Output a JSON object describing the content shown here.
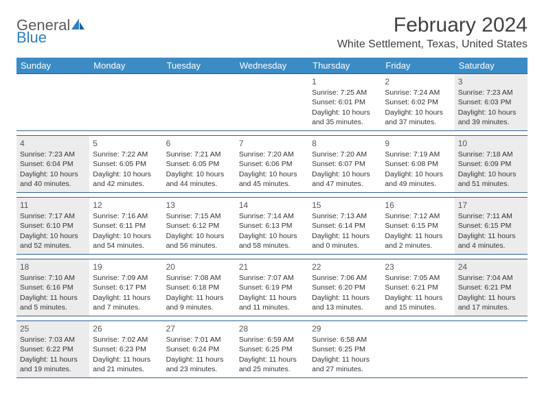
{
  "logo": {
    "text_gray": "General",
    "text_blue": "Blue"
  },
  "title": "February 2024",
  "subtitle": "White Settlement, Texas, United States",
  "colors": {
    "header_bg": "#3b8bc4",
    "border": "#2f5f8f",
    "shaded_bg": "#ececec",
    "text": "#333333",
    "title_text": "#404040",
    "logo_gray": "#5a5a5a",
    "logo_blue": "#2f7fbf"
  },
  "weekdays": [
    "Sunday",
    "Monday",
    "Tuesday",
    "Wednesday",
    "Thursday",
    "Friday",
    "Saturday"
  ],
  "weeks": [
    [
      {
        "num": "",
        "lines": []
      },
      {
        "num": "",
        "lines": []
      },
      {
        "num": "",
        "lines": []
      },
      {
        "num": "",
        "lines": []
      },
      {
        "num": "1",
        "lines": [
          "Sunrise: 7:25 AM",
          "Sunset: 6:01 PM",
          "Daylight: 10 hours and 35 minutes."
        ]
      },
      {
        "num": "2",
        "lines": [
          "Sunrise: 7:24 AM",
          "Sunset: 6:02 PM",
          "Daylight: 10 hours and 37 minutes."
        ]
      },
      {
        "num": "3",
        "lines": [
          "Sunrise: 7:23 AM",
          "Sunset: 6:03 PM",
          "Daylight: 10 hours and 39 minutes."
        ]
      }
    ],
    [
      {
        "num": "4",
        "lines": [
          "Sunrise: 7:23 AM",
          "Sunset: 6:04 PM",
          "Daylight: 10 hours and 40 minutes."
        ]
      },
      {
        "num": "5",
        "lines": [
          "Sunrise: 7:22 AM",
          "Sunset: 6:05 PM",
          "Daylight: 10 hours and 42 minutes."
        ]
      },
      {
        "num": "6",
        "lines": [
          "Sunrise: 7:21 AM",
          "Sunset: 6:05 PM",
          "Daylight: 10 hours and 44 minutes."
        ]
      },
      {
        "num": "7",
        "lines": [
          "Sunrise: 7:20 AM",
          "Sunset: 6:06 PM",
          "Daylight: 10 hours and 45 minutes."
        ]
      },
      {
        "num": "8",
        "lines": [
          "Sunrise: 7:20 AM",
          "Sunset: 6:07 PM",
          "Daylight: 10 hours and 47 minutes."
        ]
      },
      {
        "num": "9",
        "lines": [
          "Sunrise: 7:19 AM",
          "Sunset: 6:08 PM",
          "Daylight: 10 hours and 49 minutes."
        ]
      },
      {
        "num": "10",
        "lines": [
          "Sunrise: 7:18 AM",
          "Sunset: 6:09 PM",
          "Daylight: 10 hours and 51 minutes."
        ]
      }
    ],
    [
      {
        "num": "11",
        "lines": [
          "Sunrise: 7:17 AM",
          "Sunset: 6:10 PM",
          "Daylight: 10 hours and 52 minutes."
        ]
      },
      {
        "num": "12",
        "lines": [
          "Sunrise: 7:16 AM",
          "Sunset: 6:11 PM",
          "Daylight: 10 hours and 54 minutes."
        ]
      },
      {
        "num": "13",
        "lines": [
          "Sunrise: 7:15 AM",
          "Sunset: 6:12 PM",
          "Daylight: 10 hours and 56 minutes."
        ]
      },
      {
        "num": "14",
        "lines": [
          "Sunrise: 7:14 AM",
          "Sunset: 6:13 PM",
          "Daylight: 10 hours and 58 minutes."
        ]
      },
      {
        "num": "15",
        "lines": [
          "Sunrise: 7:13 AM",
          "Sunset: 6:14 PM",
          "Daylight: 11 hours and 0 minutes."
        ]
      },
      {
        "num": "16",
        "lines": [
          "Sunrise: 7:12 AM",
          "Sunset: 6:15 PM",
          "Daylight: 11 hours and 2 minutes."
        ]
      },
      {
        "num": "17",
        "lines": [
          "Sunrise: 7:11 AM",
          "Sunset: 6:15 PM",
          "Daylight: 11 hours and 4 minutes."
        ]
      }
    ],
    [
      {
        "num": "18",
        "lines": [
          "Sunrise: 7:10 AM",
          "Sunset: 6:16 PM",
          "Daylight: 11 hours and 5 minutes."
        ]
      },
      {
        "num": "19",
        "lines": [
          "Sunrise: 7:09 AM",
          "Sunset: 6:17 PM",
          "Daylight: 11 hours and 7 minutes."
        ]
      },
      {
        "num": "20",
        "lines": [
          "Sunrise: 7:08 AM",
          "Sunset: 6:18 PM",
          "Daylight: 11 hours and 9 minutes."
        ]
      },
      {
        "num": "21",
        "lines": [
          "Sunrise: 7:07 AM",
          "Sunset: 6:19 PM",
          "Daylight: 11 hours and 11 minutes."
        ]
      },
      {
        "num": "22",
        "lines": [
          "Sunrise: 7:06 AM",
          "Sunset: 6:20 PM",
          "Daylight: 11 hours and 13 minutes."
        ]
      },
      {
        "num": "23",
        "lines": [
          "Sunrise: 7:05 AM",
          "Sunset: 6:21 PM",
          "Daylight: 11 hours and 15 minutes."
        ]
      },
      {
        "num": "24",
        "lines": [
          "Sunrise: 7:04 AM",
          "Sunset: 6:21 PM",
          "Daylight: 11 hours and 17 minutes."
        ]
      }
    ],
    [
      {
        "num": "25",
        "lines": [
          "Sunrise: 7:03 AM",
          "Sunset: 6:22 PM",
          "Daylight: 11 hours and 19 minutes."
        ]
      },
      {
        "num": "26",
        "lines": [
          "Sunrise: 7:02 AM",
          "Sunset: 6:23 PM",
          "Daylight: 11 hours and 21 minutes."
        ]
      },
      {
        "num": "27",
        "lines": [
          "Sunrise: 7:01 AM",
          "Sunset: 6:24 PM",
          "Daylight: 11 hours and 23 minutes."
        ]
      },
      {
        "num": "28",
        "lines": [
          "Sunrise: 6:59 AM",
          "Sunset: 6:25 PM",
          "Daylight: 11 hours and 25 minutes."
        ]
      },
      {
        "num": "29",
        "lines": [
          "Sunrise: 6:58 AM",
          "Sunset: 6:25 PM",
          "Daylight: 11 hours and 27 minutes."
        ]
      },
      {
        "num": "",
        "lines": []
      },
      {
        "num": "",
        "lines": []
      }
    ]
  ],
  "shaded_weekend_indices": [
    0,
    6
  ]
}
